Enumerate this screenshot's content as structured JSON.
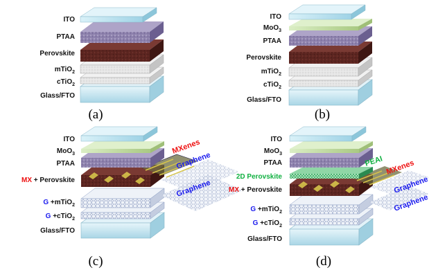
{
  "panels": {
    "a": {
      "caption": "(a)",
      "labels": {
        "ito": "ITO",
        "ptaa": "PTAA",
        "perovskite": "Perovskite",
        "mtio2": "mTiO",
        "ctio2": "cTiO",
        "glass": "Glass/FTO"
      },
      "sub2": "2"
    },
    "b": {
      "caption": "(b)",
      "labels": {
        "ito": "ITO",
        "moo3": "MoO",
        "ptaa": "PTAA",
        "perovskite": "Perovskite",
        "mtio2": "mTiO",
        "ctio2": "cTiO",
        "glass": "Glass/FTO"
      },
      "sub2": "2",
      "sub3": "3"
    },
    "c": {
      "caption": "(c)",
      "labels": {
        "ito": "ITO",
        "moo3": "MoO",
        "ptaa": "PTAA",
        "mx": "MX",
        "perovskite": " + Perovskite",
        "g": "G",
        "mtio2": " +mTiO",
        "ctio2": " +cTiO",
        "glass": "Glass/FTO"
      },
      "sub2": "2",
      "sub3": "3",
      "annotations": {
        "mxenes": "MXenes",
        "graphene1": "Graphene",
        "graphene2": "Graphene"
      }
    },
    "d": {
      "caption": "(d)",
      "labels": {
        "ito": "ITO",
        "moo3": "MoO",
        "ptaa": "PTAA",
        "perov2d": "2D Perovskite",
        "mx": "MX",
        "perovskite": " + Perovskite",
        "g": "G",
        "mtio2": " +mTiO",
        "ctio2": " +cTiO",
        "glass": "Glass/FTO"
      },
      "sub2": "2",
      "sub3": "3",
      "annotations": {
        "peai": "PEAI",
        "mxenes": "MXenes",
        "graphene1": "Graphene",
        "graphene2": "Graphene"
      }
    }
  },
  "colors": {
    "ito": "#bfe6f0",
    "moo3": "#c5dca8",
    "ptaa": "#8e82ad",
    "perovskite": "#5c2520",
    "tio2": "#e3e3e3",
    "glass": "#cfe9f3",
    "mx_accent": "#ee1111",
    "graphene_accent": "#1a1aee",
    "peai_accent": "#10b040"
  }
}
